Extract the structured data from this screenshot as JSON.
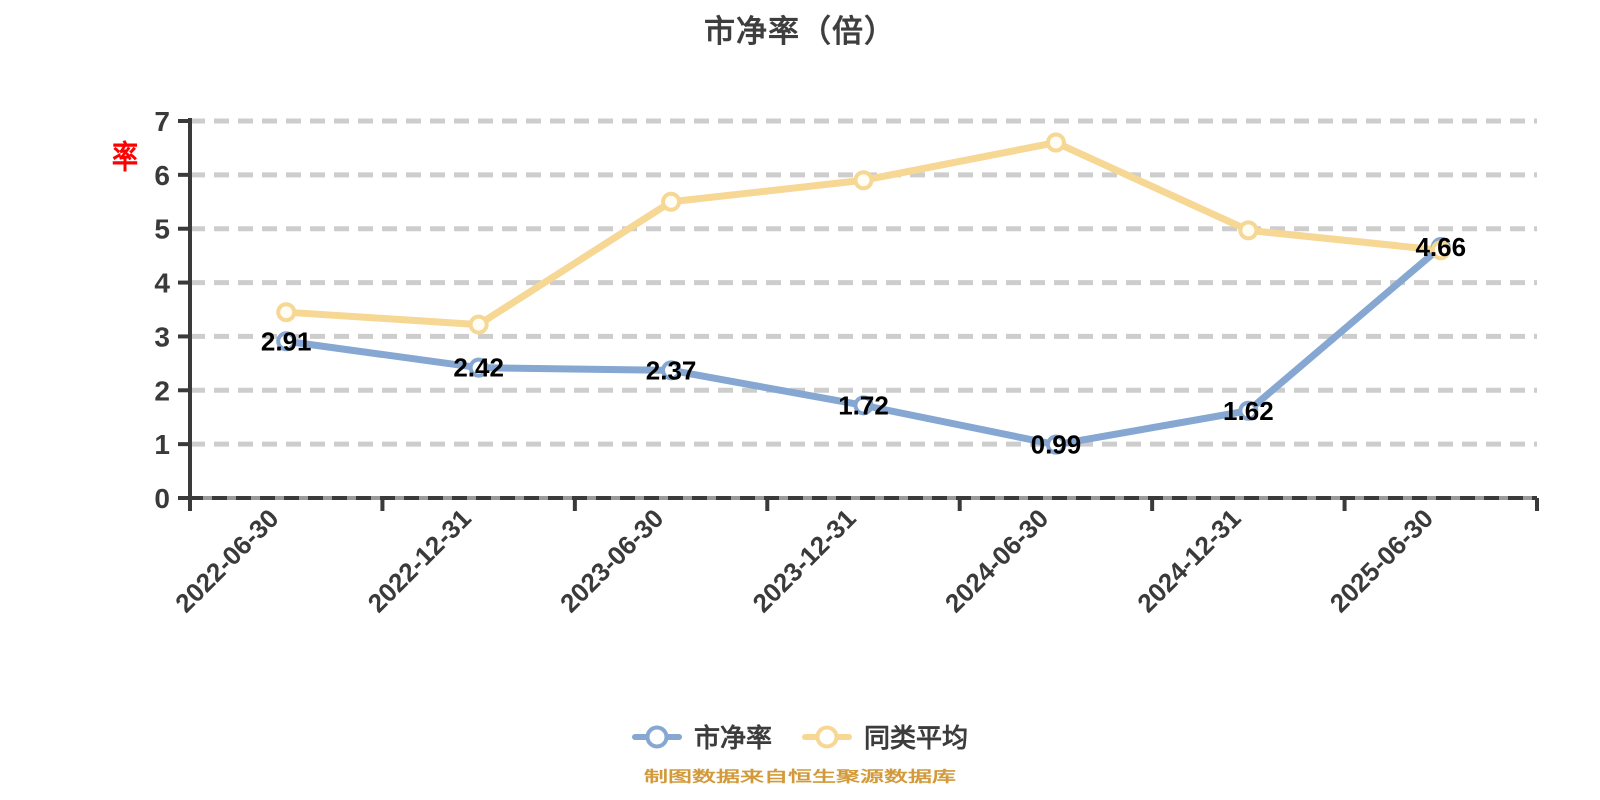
{
  "chart_data": {
    "type": "line",
    "title": "市净率（倍）",
    "categories": [
      "2022-06-30",
      "2022-12-31",
      "2023-06-30",
      "2023-12-31",
      "2024-06-30",
      "2024-12-31",
      "2025-06-30"
    ],
    "series": [
      {
        "name": "市净率",
        "color": "#85a7d1",
        "marker_fill": "#ffffff",
        "values": [
          2.91,
          2.42,
          2.37,
          1.72,
          0.99,
          1.62,
          4.66
        ],
        "point_labels": [
          "2.91",
          "2.42",
          "2.37",
          "1.72",
          "0.99",
          "1.62",
          "4.66"
        ]
      },
      {
        "name": "同类平均",
        "color": "#f6d794",
        "marker_fill": "#fffdf4",
        "values": [
          3.45,
          3.22,
          5.5,
          5.9,
          6.6,
          4.97,
          4.6
        ],
        "point_labels": []
      }
    ],
    "ylim": [
      0,
      7
    ],
    "y_interval": 1,
    "y_tick_labels": [
      "0",
      "1",
      "2",
      "3",
      "4",
      "5",
      "6",
      "7"
    ],
    "y_axis_name": "率",
    "y_axis_name_color": "#ff0000",
    "grid": {
      "dashed": true,
      "color": "#cdcdcd",
      "axis_color": "#3a3a3a"
    },
    "x_label_rotation": -45,
    "legend_position": "bottom",
    "point_label_color": "#000000",
    "footer": "制图数据来自恒生聚源数据库",
    "footer_color": "#d29a3a"
  }
}
